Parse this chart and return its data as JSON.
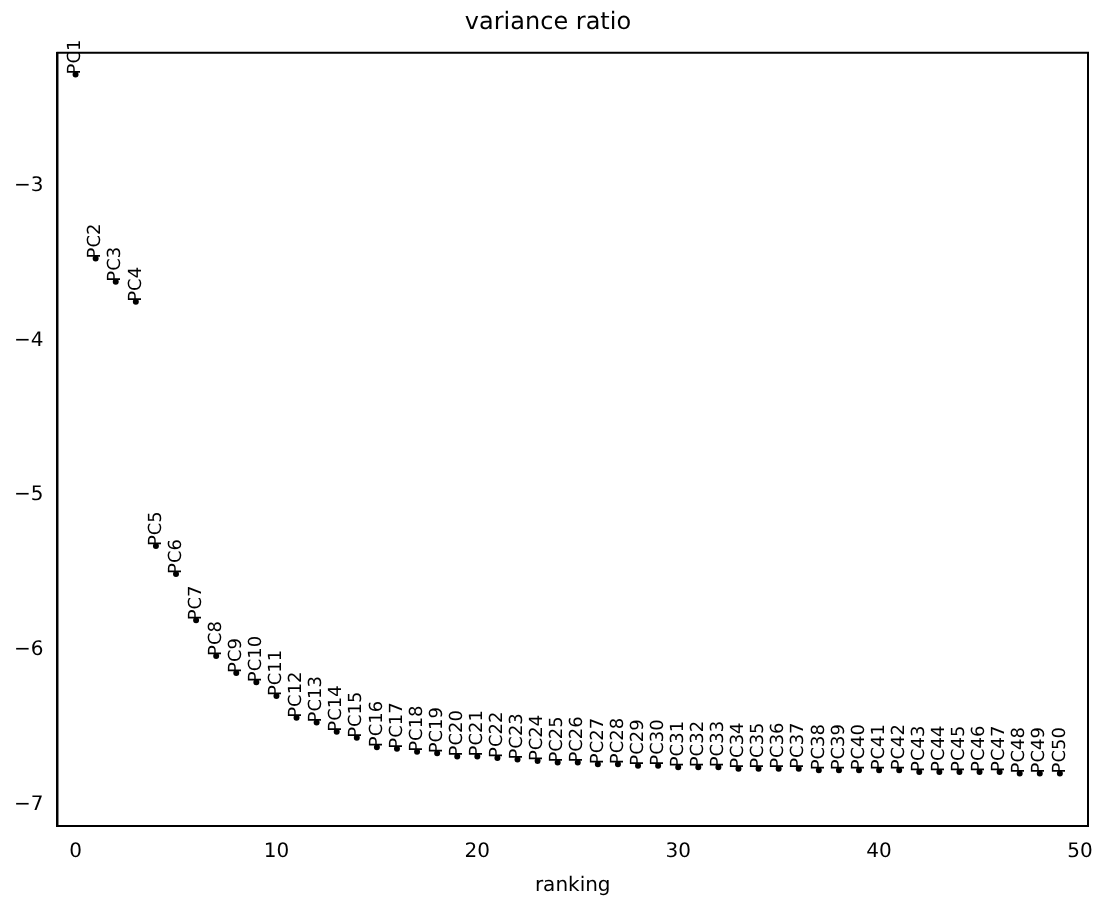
{
  "chart_data": {
    "type": "scatter",
    "title": "variance ratio",
    "xlabel": "ranking",
    "marker": "circle",
    "grid": false,
    "legend": false,
    "xlim": [
      -0.9,
      50.4
    ],
    "ylim": [
      -7.14,
      -2.14
    ],
    "xticks": [
      0,
      10,
      20,
      30,
      40,
      50
    ],
    "yticks": [
      -7,
      -6,
      -5,
      -4,
      -3
    ],
    "x": [
      0,
      1,
      2,
      3,
      4,
      5,
      6,
      7,
      8,
      9,
      10,
      11,
      12,
      13,
      14,
      15,
      16,
      17,
      18,
      19,
      20,
      21,
      22,
      23,
      24,
      25,
      26,
      27,
      28,
      29,
      30,
      31,
      32,
      33,
      34,
      35,
      36,
      37,
      38,
      39,
      40,
      41,
      42,
      43,
      44,
      45,
      46,
      47,
      48,
      49
    ],
    "series": [
      {
        "color": "#000000",
        "values": [
          -2.28,
          -3.47,
          -3.62,
          -3.75,
          -5.33,
          -5.51,
          -5.81,
          -6.04,
          -6.15,
          -6.21,
          -6.3,
          -6.44,
          -6.47,
          -6.53,
          -6.57,
          -6.63,
          -6.64,
          -6.66,
          -6.67,
          -6.69,
          -6.69,
          -6.7,
          -6.71,
          -6.72,
          -6.73,
          -6.73,
          -6.74,
          -6.74,
          -6.75,
          -6.75,
          -6.76,
          -6.76,
          -6.76,
          -6.77,
          -6.77,
          -6.77,
          -6.77,
          -6.78,
          -6.78,
          -6.78,
          -6.78,
          -6.78,
          -6.79,
          -6.79,
          -6.79,
          -6.79,
          -6.79,
          -6.8,
          -6.8,
          -6.8
        ],
        "value_labels": [
          "PC1",
          "PC2",
          "PC3",
          "PC4",
          "PC5",
          "PC6",
          "PC7",
          "PC8",
          "PC9",
          "PC10",
          "PC11",
          "PC12",
          "PC13",
          "PC14",
          "PC15",
          "PC16",
          "PC17",
          "PC18",
          "PC19",
          "PC20",
          "PC21",
          "PC22",
          "PC23",
          "PC24",
          "PC25",
          "PC26",
          "PC27",
          "PC28",
          "PC29",
          "PC30",
          "PC31",
          "PC32",
          "PC33",
          "PC34",
          "PC35",
          "PC36",
          "PC37",
          "PC38",
          "PC39",
          "PC40",
          "PC41",
          "PC42",
          "PC43",
          "PC44",
          "PC45",
          "PC46",
          "PC47",
          "PC48",
          "PC49",
          "PC50"
        ]
      }
    ]
  }
}
